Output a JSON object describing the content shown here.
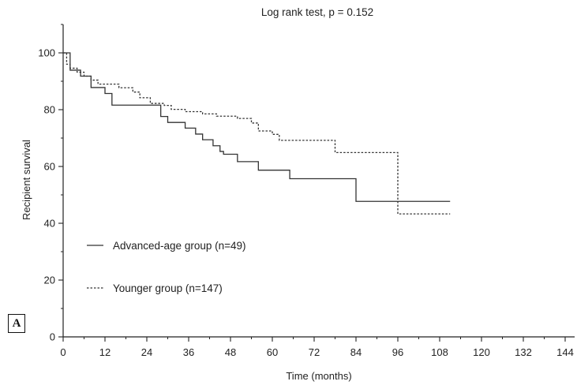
{
  "chart_data": {
    "type": "line",
    "subtype": "kaplan-meier step",
    "title": "Log rank test, p = 0.152",
    "xlabel": "Time (months)",
    "ylabel": "Recipient survival",
    "xlim": [
      0,
      146
    ],
    "ylim": [
      0,
      110
    ],
    "xticks": [
      0,
      12,
      24,
      36,
      48,
      60,
      72,
      84,
      96,
      108,
      120,
      132,
      144
    ],
    "yticks": [
      0,
      20,
      40,
      60,
      80,
      100
    ],
    "grid": false,
    "legend_position": "lower-left",
    "panel_label": "A",
    "series": [
      {
        "name": "Advanced-age group (n=49)",
        "style": "solid",
        "color": "#333333",
        "steps": [
          [
            0,
            100
          ],
          [
            2,
            93.9
          ],
          [
            5,
            91.8
          ],
          [
            8,
            87.8
          ],
          [
            12,
            85.7
          ],
          [
            14,
            81.6
          ],
          [
            28,
            77.6
          ],
          [
            30,
            75.5
          ],
          [
            35,
            73.5
          ],
          [
            38,
            71.4
          ],
          [
            40,
            69.4
          ],
          [
            43,
            67.3
          ],
          [
            45,
            65.3
          ],
          [
            46,
            64.3
          ],
          [
            50,
            61.7
          ],
          [
            56,
            58.7
          ],
          [
            65,
            55.7
          ],
          [
            84,
            47.7
          ],
          [
            111,
            47.7
          ]
        ]
      },
      {
        "name": "Younger group (n=147)",
        "style": "dashed",
        "color": "#333333",
        "steps": [
          [
            0,
            100
          ],
          [
            1,
            96
          ],
          [
            2,
            94.6
          ],
          [
            4,
            93.2
          ],
          [
            6,
            91.8
          ],
          [
            8,
            90.4
          ],
          [
            10,
            89
          ],
          [
            16,
            87.7
          ],
          [
            20,
            86.2
          ],
          [
            22,
            84.2
          ],
          [
            25,
            82.2
          ],
          [
            29,
            81.5
          ],
          [
            31,
            80.1
          ],
          [
            35,
            79.3
          ],
          [
            40,
            78.5
          ],
          [
            44,
            77.7
          ],
          [
            50,
            76.9
          ],
          [
            54,
            75.3
          ],
          [
            56,
            72.5
          ],
          [
            60,
            71.3
          ],
          [
            62,
            69.2
          ],
          [
            78,
            64.9
          ],
          [
            96,
            43.3
          ],
          [
            111,
            43.3
          ]
        ]
      }
    ]
  }
}
